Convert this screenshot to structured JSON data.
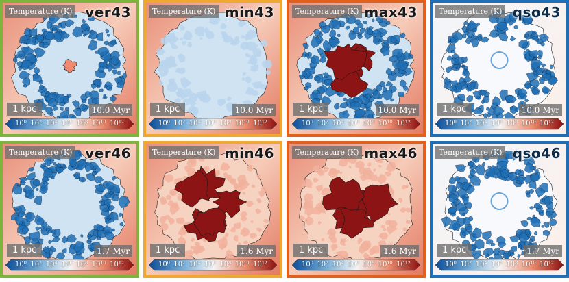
{
  "common": {
    "quantity_label": "Temperature (K)",
    "scale_label": "1 kpc",
    "colorbar_ticks": [
      "10⁰",
      "10²",
      "10⁴",
      "10⁶",
      "10⁸",
      "10¹⁰",
      "10¹²"
    ]
  },
  "colors": {
    "green_frame": "#7db43c",
    "orange_frame": "#f0a830",
    "deep_orange_frame": "#e0601c",
    "blue_frame": "#1e6fb8",
    "cold": "#1f6fb5",
    "cool": "#cfe3f2",
    "warm": "#f6d2c0",
    "hot": "#8c1414"
  },
  "panels": [
    {
      "name": "ver43",
      "time": "10.0 Myr",
      "frame": "green",
      "interior": "cool",
      "hot_core": "small",
      "ring": "cold",
      "text_color": "#1a1a1a"
    },
    {
      "name": "min43",
      "time": "10.0 Myr",
      "frame": "orange",
      "interior": "cool",
      "hot_core": "none",
      "ring": "cool",
      "text_color": "#1a1a1a"
    },
    {
      "name": "max43",
      "time": "10.0 Myr",
      "frame": "deep-orange",
      "interior": "cool",
      "hot_core": "large",
      "ring": "cold",
      "text_color": "#1a1a1a"
    },
    {
      "name": "qso43",
      "time": "10.0 Myr",
      "frame": "blue",
      "interior": "white",
      "hot_core": "none",
      "ring": "cold",
      "text_color": "#0d2c4a"
    },
    {
      "name": "ver46",
      "time": "1.7 Myr",
      "frame": "green",
      "interior": "cool",
      "hot_core": "none",
      "ring": "cold",
      "text_color": "#1a1a1a"
    },
    {
      "name": "min46",
      "time": "1.6 Myr",
      "frame": "orange",
      "interior": "warm",
      "hot_core": "large",
      "ring": "warm",
      "text_color": "#1a1a1a"
    },
    {
      "name": "max46",
      "time": "1.6 Myr",
      "frame": "deep-orange",
      "interior": "warm",
      "hot_core": "large",
      "ring": "warm",
      "text_color": "#1a1a1a"
    },
    {
      "name": "qso46",
      "time": "1.7 Myr",
      "frame": "blue",
      "interior": "white",
      "hot_core": "none",
      "ring": "cold",
      "text_color": "#0d2c4a"
    }
  ]
}
